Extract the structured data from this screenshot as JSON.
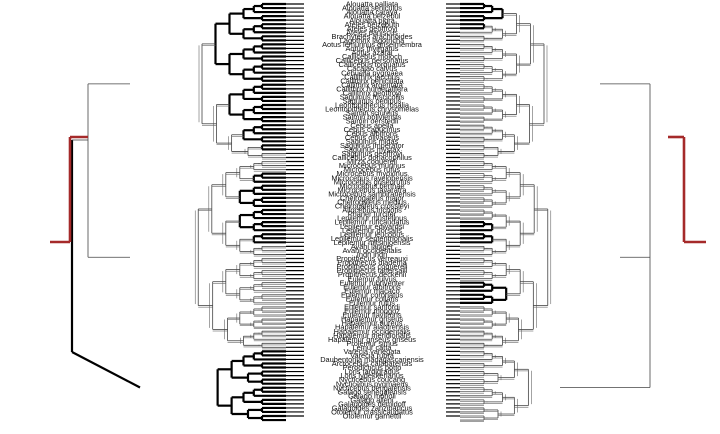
{
  "diagram": {
    "type": "cophylogeny",
    "left_tree": {
      "root_branch_color": "#a52a2a",
      "highlight_color": "#000000",
      "outline_color": "#333333"
    },
    "right_tree": {
      "root_branch_color": "#a52a2a",
      "highlight_color": "#000000",
      "outline_color": "#333333"
    }
  },
  "taxa": [
    "Alouatta palliata",
    "Alouatta seniculus",
    "Alouatta caraya",
    "Alouatta belzebul",
    "Alouatta pigra",
    "Ateles belzebuth",
    "Ateles geoffroyi",
    "Ateles paniscus",
    "Brachyteles arachnoides",
    "Lagothrix lagotricha",
    "Aotus lemurinus griseimembra",
    "Aotus trivirgatus",
    "Aotus azarai",
    "Callicebus moloch",
    "Callicebus personatus",
    "Callicebus torquatus",
    "Cacajao calvus",
    "Cebuella pygmaea",
    "Callithrix jacchus",
    "Callithrix penicillata",
    "Callithrix argentata",
    "Callithrix humeralifera",
    "Callithrix geoffroyi",
    "Saguinus fuscicollis",
    "Saguinus oedipus",
    "Leontopithecus rosalia",
    "Leontopithecus chrysomelas",
    "Saimiri sciureus",
    "Saimiri boliviensis",
    "Saimiri oerstedii",
    "Cebus apella",
    "Cebus capucinus",
    "Cebus albifrons",
    "Cebus olivaceus",
    "Saguinus midas",
    "Saguinus imperator",
    "Saguinus mystax",
    "Saguinus geoffroyi",
    "Callicebus donacophilus",
    "Mirza coquereli",
    "Microcebus murinus",
    "Microcebus rufus",
    "Microcebus myoxinus",
    "Microcebus ravelobensis",
    "Microcebus griseorufus",
    "Microcebus berthae",
    "Microcebus tavaratra",
    "Microcebus sambiranensis",
    "Cheirogaleus major",
    "Cheirogaleus medius",
    "Cheirogaleus crossleyi",
    "Allocebus trichotis",
    "Phaner furcifer",
    "Lepilemur mustelinus",
    "Lepilemur ruficaudatus",
    "Lepilemur edwardsi",
    "Lepilemur dorsalis",
    "Lepilemur leucopus",
    "Lepilemur septentrionalis",
    "Lepilemur mitsinjoensis",
    "Avahi laniger",
    "Avahi occidentalis",
    "Indri indri",
    "Propithecus verreauxi",
    "Propithecus diadema",
    "Propithecus coquereli",
    "Propithecus tattersalli",
    "Propithecus deckenii",
    "Eulemur fulvus",
    "Eulemur rubriventer",
    "Eulemur albifrons",
    "Eulemur macaco",
    "Eulemur coronatus",
    "Eulemur collaris",
    "Eulemur rufus",
    "Eulemur sanfordi",
    "Eulemur mongoz",
    "Eulemur flavifrons",
    "Hapalemur griseus",
    "Hapalemur aureus",
    "Hapalemur alaotrensis",
    "Hapalemur occidentalis",
    "Hapalemur meridionalis",
    "Hapalemur griseus griseus",
    "Prolemur simus",
    "Lemur catta",
    "Varecia variegata",
    "Varecia rubra",
    "Daubentonia madagascariensis",
    "Arctocebus calabarensis",
    "Perodicticus potto",
    "Loris tardigradus",
    "Loris lydekkerianus",
    "Nycticebus coucang",
    "Nycticebus pygmaeus",
    "Nycticebus bengalensis",
    "Galago senegalensis",
    "Galago moholi",
    "Galago alleni",
    "Galagoides demidoff",
    "Galagoides zanzibaricus",
    "Otolemur crassicaudatus",
    "Otolemur garnettii"
  ]
}
